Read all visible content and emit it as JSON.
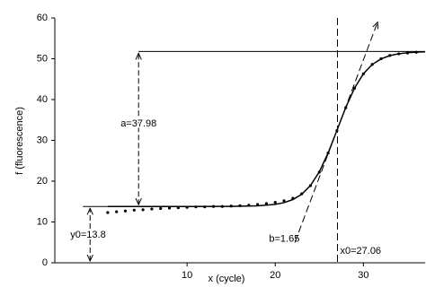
{
  "chart_data": {
    "type": "sigmoid-fit",
    "x_label": "x (cycle)",
    "y_label": "f (fluorescence)",
    "xlim": [
      -5,
      37
    ],
    "ylim": [
      0,
      60
    ],
    "xticks": [
      10,
      20,
      30
    ],
    "yticks": [
      0,
      10,
      20,
      30,
      40,
      50,
      60
    ],
    "points": {
      "x": [
        1,
        2,
        3,
        4,
        5,
        6,
        7,
        8,
        9,
        10,
        11,
        12,
        13,
        14,
        15,
        16,
        17,
        18,
        19,
        20,
        21,
        22,
        23,
        24,
        25,
        26,
        27,
        28,
        29,
        30,
        31,
        32,
        33,
        34,
        35,
        36
      ],
      "values": [
        12.3,
        12.5,
        12.7,
        12.9,
        13.0,
        13.2,
        13.3,
        13.4,
        13.5,
        13.6,
        13.7,
        13.7,
        13.8,
        13.8,
        13.9,
        14.0,
        14.1,
        14.3,
        14.5,
        14.8,
        15.2,
        15.8,
        16.9,
        18.9,
        22.2,
        26.9,
        32.4,
        38.0,
        42.8,
        46.3,
        48.6,
        50.0,
        50.8,
        51.2,
        51.4,
        51.6
      ]
    },
    "curve": {
      "x": [
        1,
        5,
        10,
        15,
        18,
        20,
        21,
        22,
        23,
        24,
        25,
        26,
        27,
        28,
        29,
        30,
        31,
        32,
        33,
        34,
        35,
        36,
        37
      ],
      "values": [
        13.8,
        13.8,
        13.8,
        13.83,
        13.96,
        14.32,
        14.74,
        15.49,
        16.79,
        18.94,
        22.28,
        26.9,
        32.44,
        38.05,
        42.82,
        46.32,
        48.59,
        49.96,
        50.77,
        51.22,
        51.47,
        51.61,
        51.69
      ]
    },
    "fit": {
      "a": {
        "value": 37.98,
        "label": "a=37.98"
      },
      "y0": {
        "value": 13.8,
        "label": "y0=13.8"
      },
      "b": {
        "value": 1.65,
        "label": "b=1.65"
      },
      "x0": {
        "value": 27.06,
        "label": "x0=27.06"
      }
    }
  }
}
